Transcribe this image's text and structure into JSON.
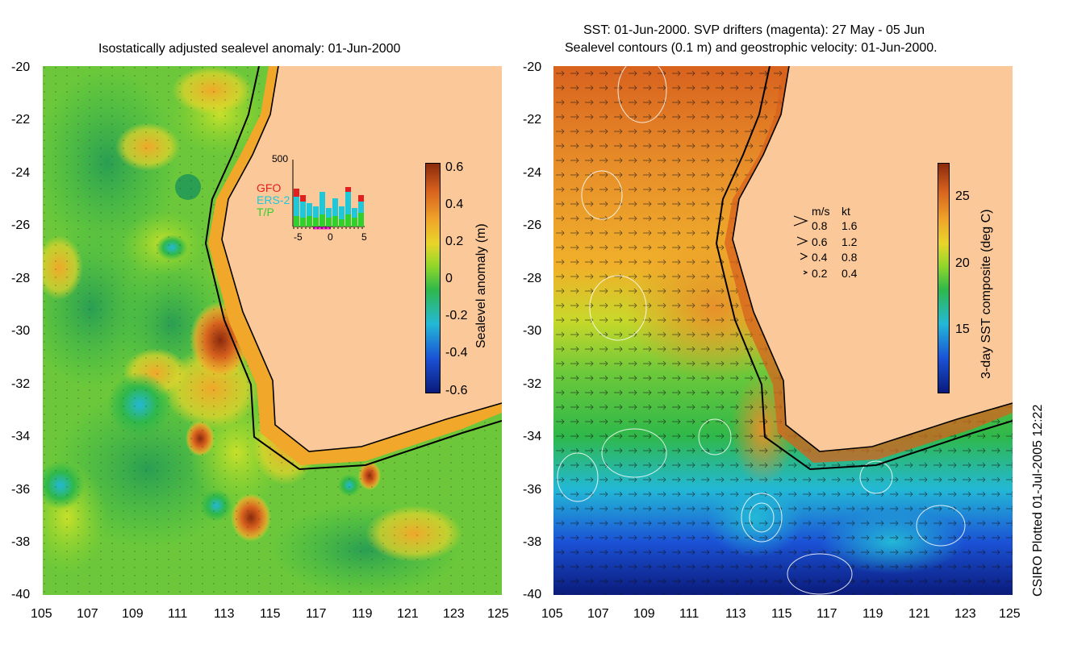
{
  "left_panel": {
    "title": "Isostatically adjusted sealevel anomaly: 01-Jun-2000",
    "colorbar": {
      "label": "Sealevel anomaly (m)",
      "ticks": [
        "0.6",
        "0.4",
        "0.2",
        "0",
        "-0.2",
        "-0.4",
        "-0.6"
      ],
      "colors": [
        "#0a1a7a",
        "#1b52d6",
        "#23b8d6",
        "#2fb84a",
        "#8fd62a",
        "#e8d52a",
        "#f0a72a",
        "#d8621e",
        "#8a2a0c"
      ]
    },
    "histogram": {
      "ymax_label": "500",
      "legend": [
        {
          "name": "GFO",
          "color": "#e21e1e"
        },
        {
          "name": "ERS-2",
          "color": "#1ec8d8"
        },
        {
          "name": "T/P",
          "color": "#2ed12e"
        }
      ],
      "x_ticks": [
        "-5",
        "0",
        "5"
      ]
    }
  },
  "right_panel": {
    "title_line1": "SST: 01-Jun-2000. SVP drifters (magenta): 27 May - 05 Jun",
    "title_line2": "Sealevel contours (0.1 m) and geostrophic velocity: 01-Jun-2000.",
    "colorbar": {
      "label": "3-day SST composite (deg C)",
      "ticks": [
        "25",
        "20",
        "15"
      ],
      "colors": [
        "#0a1a7a",
        "#1b52d6",
        "#23b8d6",
        "#2fb84a",
        "#8fd62a",
        "#e8d52a",
        "#f0a72a",
        "#d8621e",
        "#8a2a0c"
      ]
    },
    "velocity_legend": {
      "header_ms": "m/s",
      "header_kt": "kt",
      "rows": [
        {
          "ms": "0.8",
          "kt": "1.6"
        },
        {
          "ms": "0.6",
          "kt": "1.2"
        },
        {
          "ms": "0.4",
          "kt": "0.8"
        },
        {
          "ms": "0.2",
          "kt": "0.4"
        }
      ]
    }
  },
  "axes": {
    "lat_ticks": [
      "-20",
      "-22",
      "-24",
      "-26",
      "-28",
      "-30",
      "-32",
      "-34",
      "-36",
      "-38",
      "-40"
    ],
    "lon_ticks": [
      "105",
      "107",
      "109",
      "111",
      "113",
      "115",
      "117",
      "119",
      "121",
      "123",
      "125"
    ]
  },
  "credit": "CSIRO Plotted 01-Jul-2005 12:22",
  "colors": {
    "land": "#fbc89a",
    "coast": "#000000"
  }
}
